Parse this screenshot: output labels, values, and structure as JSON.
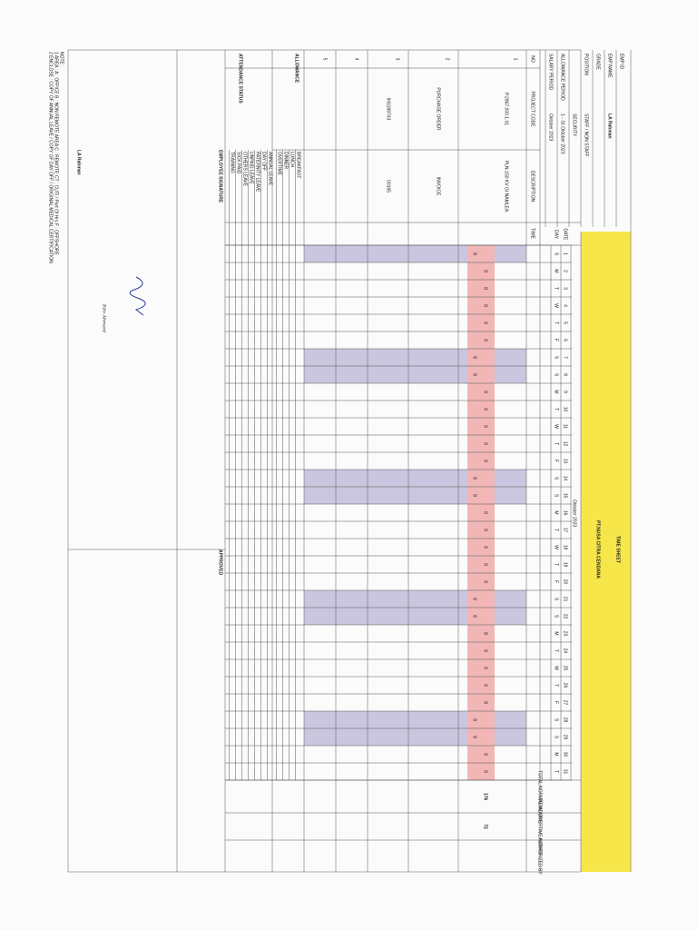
{
  "header": {
    "title": "TIME SHEET",
    "company": "PT.NUSA CITRA CENDANA",
    "month": "Oktober 2023"
  },
  "employee": [
    {
      "label": "EMP ID"
    },
    {
      "label": "EMP NAME",
      "value": "LA Rahman"
    },
    {
      "label": "GRADE"
    },
    {
      "label": "POSITION",
      "value": "STAFF / NON STAFF"
    },
    {
      "label": "",
      "value": "SECURITY"
    },
    {
      "label": "ALLOWANCE PERIOD",
      "value": "1 - 31 Oktober 2023"
    },
    {
      "label": "SALARY PERIOD",
      "value": "Oktober 2023"
    }
  ],
  "columns": {
    "no": "NO",
    "project_code": "PROJECT CODE",
    "description": "DESCRIPTION",
    "time": "TIME",
    "date": "DATE",
    "day": "DAY",
    "total_normal": "TOTAL NORMAL HOURS",
    "total_overtime": "TOTAL OVERTIME HOURS",
    "authorized": "AUTHORIZED BY"
  },
  "days": {
    "dates": [
      1,
      2,
      3,
      4,
      5,
      6,
      7,
      8,
      9,
      10,
      11,
      12,
      13,
      14,
      15,
      16,
      17,
      18,
      19,
      20,
      21,
      22,
      23,
      24,
      25,
      26,
      27,
      28,
      29,
      30,
      31
    ],
    "weekdays": [
      "S",
      "M",
      "T",
      "W",
      "T",
      "F",
      "S",
      "S",
      "M",
      "T",
      "W",
      "T",
      "F",
      "S",
      "S",
      "M",
      "T",
      "W",
      "T",
      "F",
      "S",
      "S",
      "M",
      "T",
      "W",
      "T",
      "F",
      "S",
      "S",
      "M",
      "T"
    ]
  },
  "rows": [
    {
      "no": "1",
      "project_code": "P.2867.000.1.01",
      "description": "PLN-150 KV GI NAMLEA",
      "normal": [
        null,
        8,
        8,
        8,
        8,
        8,
        null,
        null,
        8,
        8,
        8,
        8,
        8,
        null,
        null,
        8,
        8,
        8,
        8,
        8,
        null,
        null,
        8,
        8,
        8,
        8,
        8,
        null,
        null,
        8,
        8
      ],
      "overtime": [
        8,
        null,
        null,
        null,
        null,
        null,
        8,
        8,
        null,
        null,
        null,
        null,
        null,
        8,
        8,
        null,
        null,
        null,
        null,
        null,
        8,
        8,
        null,
        null,
        null,
        null,
        null,
        8,
        8,
        null,
        null
      ],
      "total_normal": 176,
      "total_overtime": 72
    },
    {
      "no": "2",
      "project_code": "PURCHASE ORDER",
      "description": "INVOICE"
    },
    {
      "no": "3",
      "project_code": "941188743",
      "description": "00165"
    },
    {
      "no": "4"
    },
    {
      "no": "5"
    }
  ],
  "allowance": {
    "label": "ALLOWANCE",
    "items": [
      "BREAKFAST",
      "LUNCH",
      "DINNER",
      "OVERTIME"
    ]
  },
  "attendance": {
    "label": "ATTENDANCE STATUS",
    "items": [
      "ANNUAL LEAVE",
      "DAY OFF",
      "PATERNITY LEAVE",
      "UNPAID LEAVE",
      "OTHERS LEAVE",
      "SICK PAID",
      "TRAINING"
    ]
  },
  "signature": {
    "label": "EMPLOYEE SIGNATURE",
    "name": "LA Rahman",
    "approved": "APPROVED",
    "signer": "Edo Ahmant"
  },
  "notes": {
    "label": "NOTE :",
    "lines": [
      "1  AREA :   A : OFFICE    B : NON REMOTE AREA    C : REMOTE    CT : CUTI / Part Of Hrs    F : OFFSHORE",
      "2  ENCLOSE :   COPY OF ANNUAL LEAVE / COPY OF DAY OFF / ORIGINAL MEDICAL CERTIFICATION"
    ]
  }
}
